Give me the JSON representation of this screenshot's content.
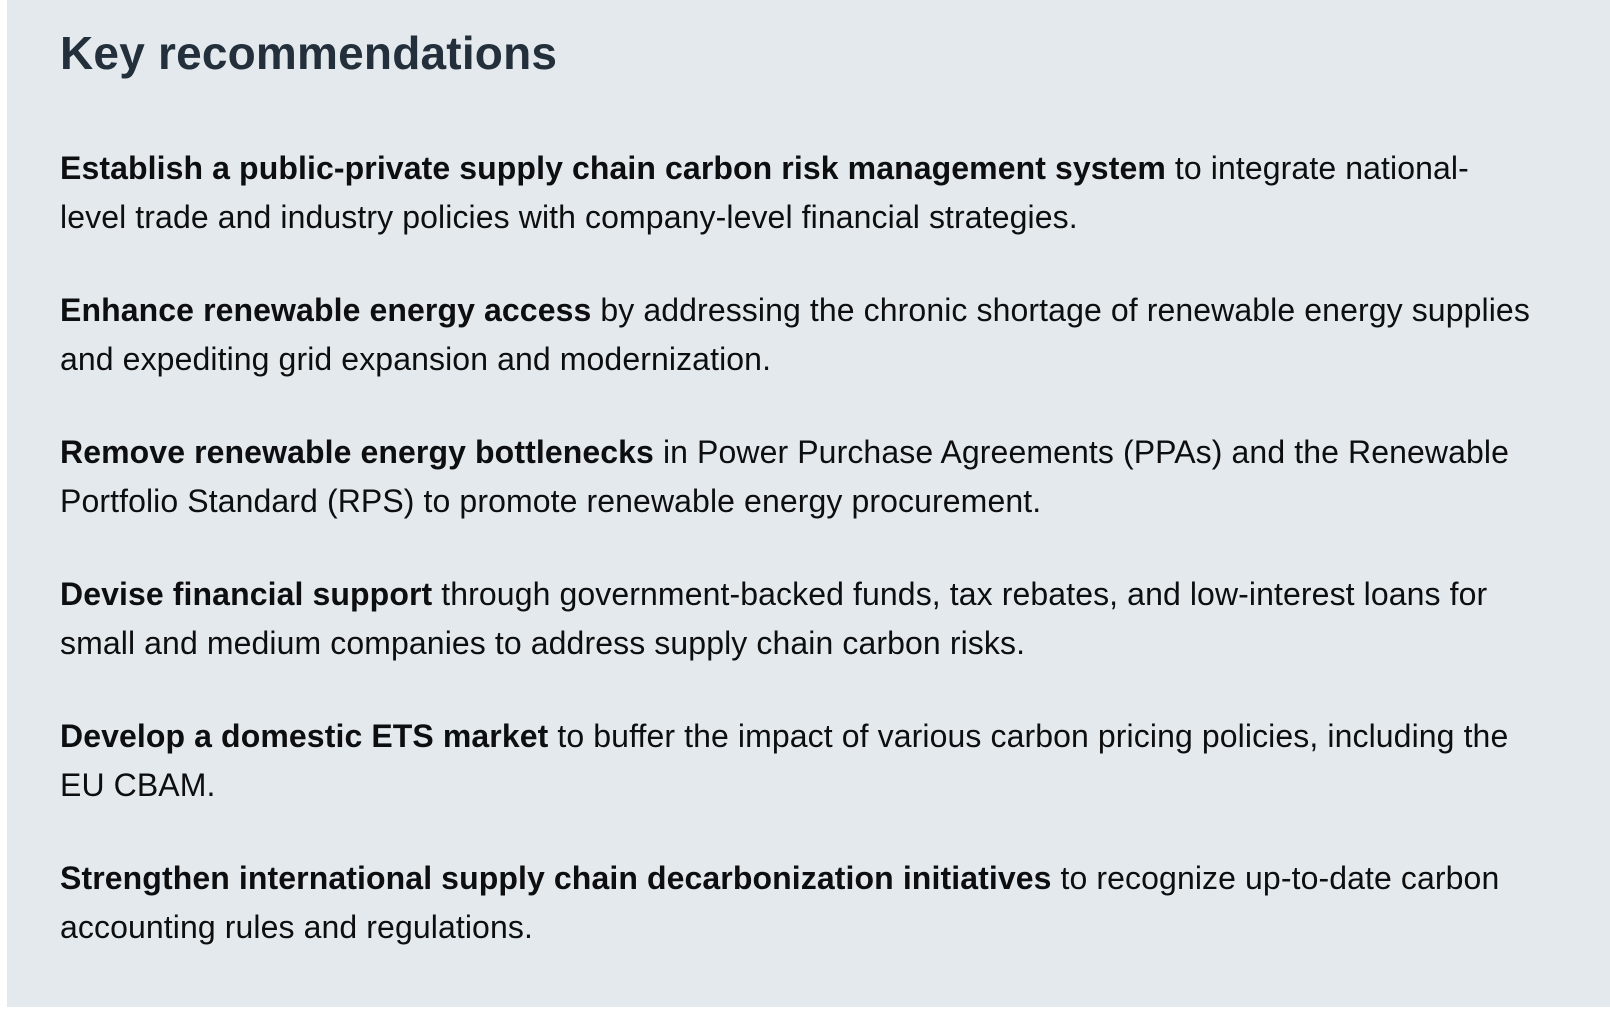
{
  "page": {
    "colors": {
      "panel_background": "#e4e9ed",
      "frame_background": "#ffffff",
      "title_color": "#232f3b",
      "body_color": "#0d0e0f"
    }
  },
  "content": {
    "title": "Key recommendations",
    "paragraphs": [
      {
        "bold": "Establish a public-private supply chain carbon risk management system",
        "rest": " to integrate national-level trade and industry policies with company-level financial strategies."
      },
      {
        "bold": "Enhance renewable energy access",
        "rest": " by addressing the chronic shortage of renewable energy supplies and expediting grid expansion and modernization."
      },
      {
        "bold": "Remove renewable energy bottlenecks",
        "rest": " in Power Purchase Agreements (PPAs) and the Renewable Portfolio Standard (RPS) to promote renewable energy procurement."
      },
      {
        "bold": "Devise financial support",
        "rest": " through government-backed funds, tax rebates, and low-interest loans for small and medium companies to address supply chain carbon risks."
      },
      {
        "bold": "Develop a domestic ETS market",
        "rest": " to buffer the impact of various carbon pricing policies, including the EU CBAM."
      },
      {
        "bold": "Strengthen international supply chain decarbonization initiatives",
        "rest": " to recognize up-to-date carbon accounting rules and regulations."
      }
    ]
  }
}
